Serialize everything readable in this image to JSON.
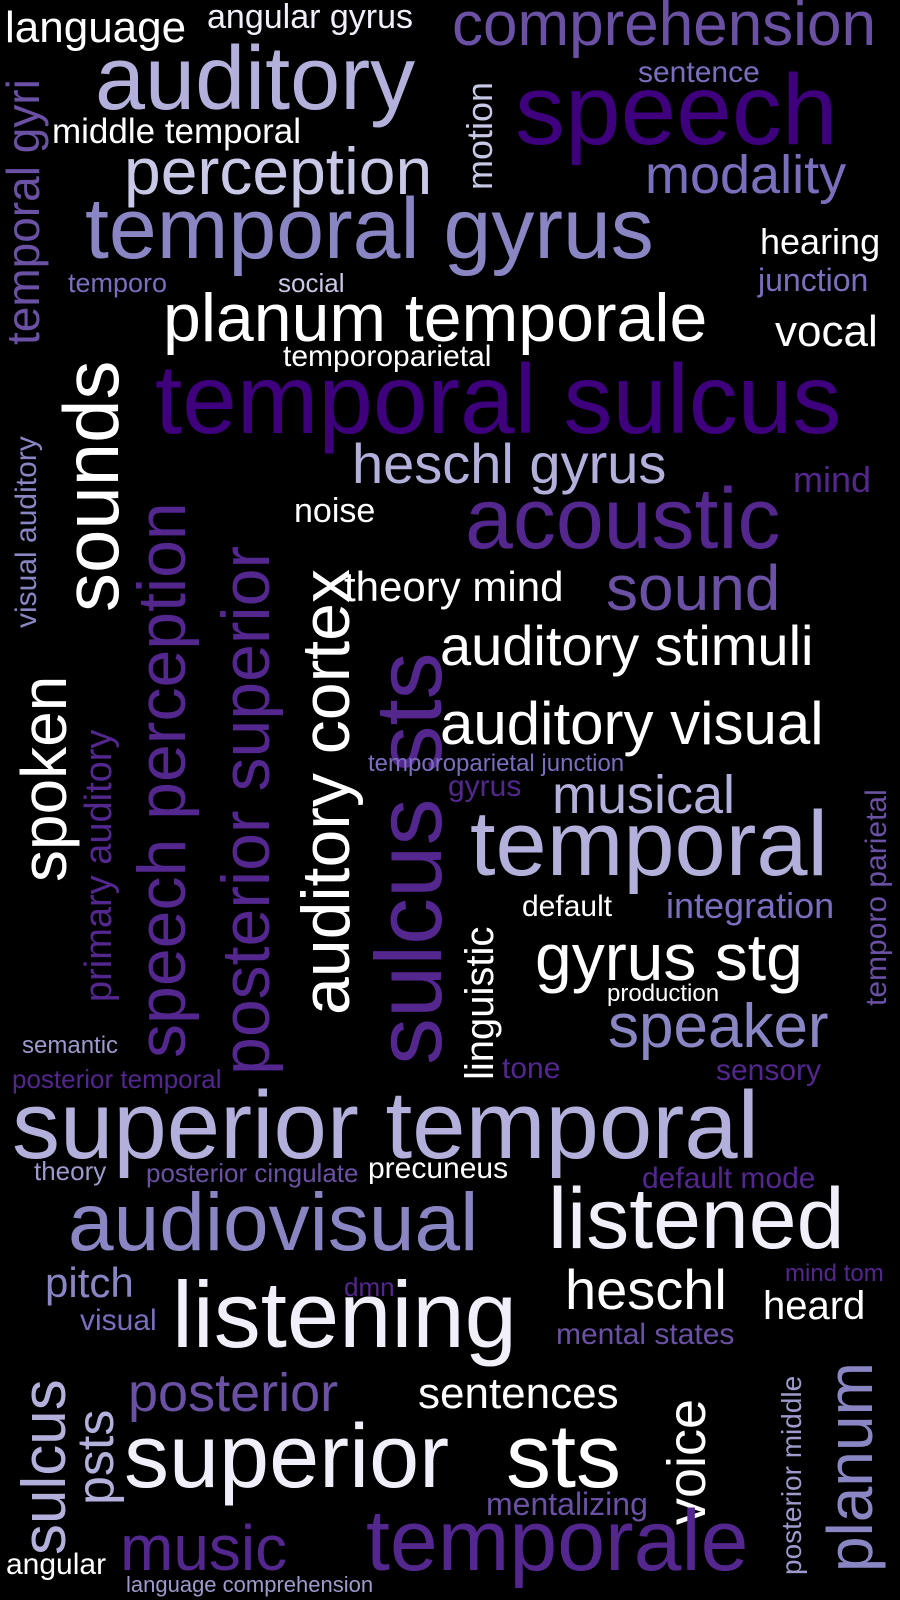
{
  "words": {
    "language": "language",
    "angular_gyrus": "angular gyrus",
    "comprehension": "comprehension",
    "auditory": "auditory",
    "sentence": "sentence",
    "middle_temporal": "middle temporal",
    "motion": "motion",
    "speech": "speech",
    "perception": "perception",
    "modality": "modality",
    "temporal_gyri": "temporal gyri",
    "temporal_gyrus": "temporal gyrus",
    "hearing": "hearing",
    "temporo": "temporo",
    "social": "social",
    "junction": "junction",
    "planum_temporale": "planum temporale",
    "vocal": "vocal",
    "sounds": "sounds",
    "temporoparietal": "temporoparietal",
    "temporal_sulcus": "temporal sulcus",
    "visual_auditory": "visual auditory",
    "heschl_gyrus": "heschl gyrus",
    "mind": "mind",
    "noise": "noise",
    "acoustic": "acoustic",
    "speech_perception": "speech perception",
    "posterior_superior": "posterior superior",
    "auditory_cortex": "auditory cortex",
    "theory_mind": "theory mind",
    "sound": "sound",
    "sulcus_sts": "sulcus sts",
    "auditory_stimuli": "auditory stimuli",
    "spoken": "spoken",
    "primary_auditory": "primary auditory",
    "auditory_visual": "auditory visual",
    "temporoparietal_junction": "temporoparietal junction",
    "temporo_parietal": "temporo parietal",
    "gyrus": "gyrus",
    "musical": "musical",
    "temporal": "temporal",
    "linguistic": "linguistic",
    "default": "default",
    "integration": "integration",
    "gyrus_stg": "gyrus stg",
    "production": "production",
    "semantic": "semantic",
    "speaker": "speaker",
    "posterior_temporal": "posterior temporal",
    "tone": "tone",
    "sensory": "sensory",
    "superior_temporal": "superior temporal",
    "theory": "theory",
    "posterior_cingulate": "posterior cingulate",
    "precuneus": "precuneus",
    "default_mode": "default mode",
    "audiovisual": "audiovisual",
    "listened": "listened",
    "pitch": "pitch",
    "dmn": "dmn",
    "heschl": "heschl",
    "mind_tom": "mind tom",
    "visual": "visual",
    "listening": "listening",
    "heard": "heard",
    "mental_states": "mental states",
    "sulcus": "sulcus",
    "psts": "psts",
    "posterior": "posterior",
    "sentences": "sentences",
    "voice": "voice",
    "posterior_middle": "posterior middle",
    "planum": "planum",
    "superior": "superior",
    "sts": "sts",
    "mentalizing": "mentalizing",
    "music": "music",
    "temporale": "temporale",
    "angular": "angular",
    "language_comprehension": "language comprehension"
  },
  "colors": {
    "background": "#000000",
    "white": "#ffffff",
    "lavender": "#b3b1dc",
    "medium_purple": "#7a6fbd",
    "purple": "#6a51a3",
    "dark_purple": "#3f007d"
  }
}
